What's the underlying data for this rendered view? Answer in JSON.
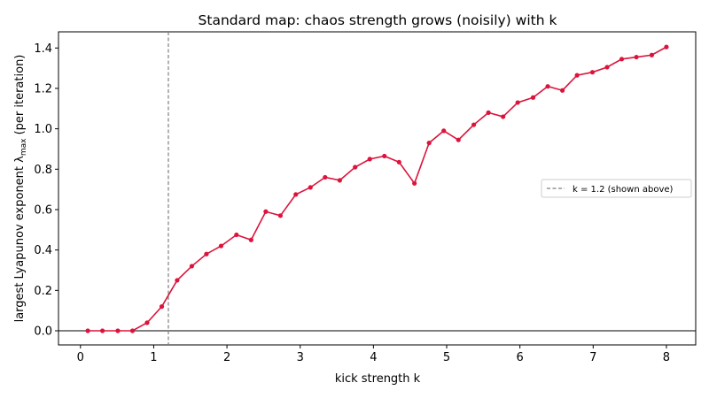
{
  "chart_data": {
    "type": "line",
    "title": "Standard map: chaos strength grows (noisily) with k",
    "xlabel": "kick strength k",
    "ylabel_main": "largest Lyapunov exponent λ",
    "ylabel_sub": "max",
    "ylabel_tail": " (per iteration)",
    "xlim": [
      -0.3,
      8.4
    ],
    "ylim": [
      -0.07,
      1.48
    ],
    "xticks": [
      0,
      1,
      2,
      3,
      4,
      5,
      6,
      7,
      8
    ],
    "yticks": [
      0.0,
      0.2,
      0.4,
      0.6,
      0.8,
      1.0,
      1.2,
      1.4
    ],
    "ytick_labels": [
      "0.0",
      "0.2",
      "0.4",
      "0.6",
      "0.8",
      "1.0",
      "1.2",
      "1.4"
    ],
    "grid": false,
    "series": [
      {
        "color": "#dc143c",
        "marker": "circle",
        "x": [
          0.1,
          0.3,
          0.51,
          0.71,
          0.91,
          1.11,
          1.32,
          1.52,
          1.72,
          1.92,
          2.13,
          2.33,
          2.53,
          2.73,
          2.94,
          3.14,
          3.34,
          3.54,
          3.75,
          3.95,
          4.15,
          4.35,
          4.56,
          4.76,
          4.96,
          5.16,
          5.37,
          5.57,
          5.77,
          5.97,
          6.18,
          6.38,
          6.58,
          6.78,
          6.99,
          7.19,
          7.39,
          7.59,
          7.8,
          8.0
        ],
        "y": [
          0.0,
          0.0,
          0.0,
          0.0,
          0.04,
          0.12,
          0.25,
          0.32,
          0.38,
          0.42,
          0.475,
          0.45,
          0.59,
          0.57,
          0.675,
          0.71,
          0.76,
          0.745,
          0.81,
          0.85,
          0.865,
          0.835,
          0.73,
          0.93,
          0.99,
          0.945,
          1.02,
          1.08,
          1.06,
          1.13,
          1.155,
          1.21,
          1.19,
          1.265,
          1.28,
          1.305,
          1.345,
          1.355,
          1.365,
          1.405
        ]
      }
    ],
    "reference_line": {
      "x": 1.2,
      "color": "#7f7f7f",
      "style": "dashed",
      "label": "k = 1.2 (shown above)"
    },
    "zero_line": {
      "y": 0,
      "color": "#000000"
    },
    "legend": {
      "placement": "right",
      "entries": [
        "k = 1.2 (shown above)"
      ]
    }
  }
}
